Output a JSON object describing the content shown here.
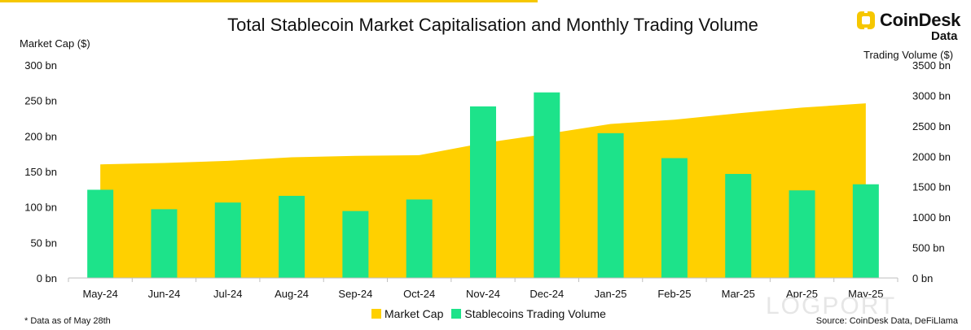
{
  "title": "Total Stablecoin Market Capitalisation and Monthly Trading Volume",
  "logo": {
    "word": "CoinDesk",
    "sub": "Data"
  },
  "left_axis_title": "Market Cap ($)",
  "right_axis_title": "Trading Volume ($)",
  "footnote": "* Data as of May 28th",
  "source": "Source: CoinDesk Data, DeFiLlama",
  "watermark": "LOGPORT",
  "colors": {
    "market_cap": "#FFD000",
    "trading_volume": "#1DE38A",
    "accent": "#F6C700"
  },
  "chart_data": {
    "type": "bar",
    "categories": [
      "May-24",
      "Jun-24",
      "Jul-24",
      "Aug-24",
      "Sep-24",
      "Oct-24",
      "Nov-24",
      "Dec-24",
      "Jan-25",
      "Feb-25",
      "Mar-25",
      "Apr-25",
      "May-25"
    ],
    "series": [
      {
        "name": "Market Cap",
        "type": "area",
        "axis": "left",
        "values": [
          160,
          162,
          165,
          170,
          172,
          173,
          190,
          203,
          217,
          223,
          232,
          240,
          246
        ]
      },
      {
        "name": "Stablecoins Trading Volume",
        "type": "bar",
        "axis": "right",
        "values": [
          1450,
          1130,
          1240,
          1350,
          1100,
          1290,
          2820,
          3050,
          2380,
          1970,
          1710,
          1440,
          1540
        ]
      }
    ],
    "y_left": {
      "label": "Market Cap ($)",
      "ticks": [
        "0 bn",
        "50 bn",
        "100 bn",
        "150 bn",
        "200 bn",
        "250 bn",
        "300 bn"
      ],
      "range": [
        0,
        300
      ]
    },
    "y_right": {
      "label": "Trading Volume ($)",
      "ticks": [
        "0 bn",
        "500 bn",
        "1000 bn",
        "1500 bn",
        "2000 bn",
        "2500 bn",
        "3000 bn",
        "3500 bn"
      ],
      "range": [
        0,
        3500
      ]
    },
    "grid": false,
    "legend": {
      "position": "bottom",
      "items": [
        "Market Cap",
        "Stablecoins Trading Volume"
      ]
    }
  }
}
